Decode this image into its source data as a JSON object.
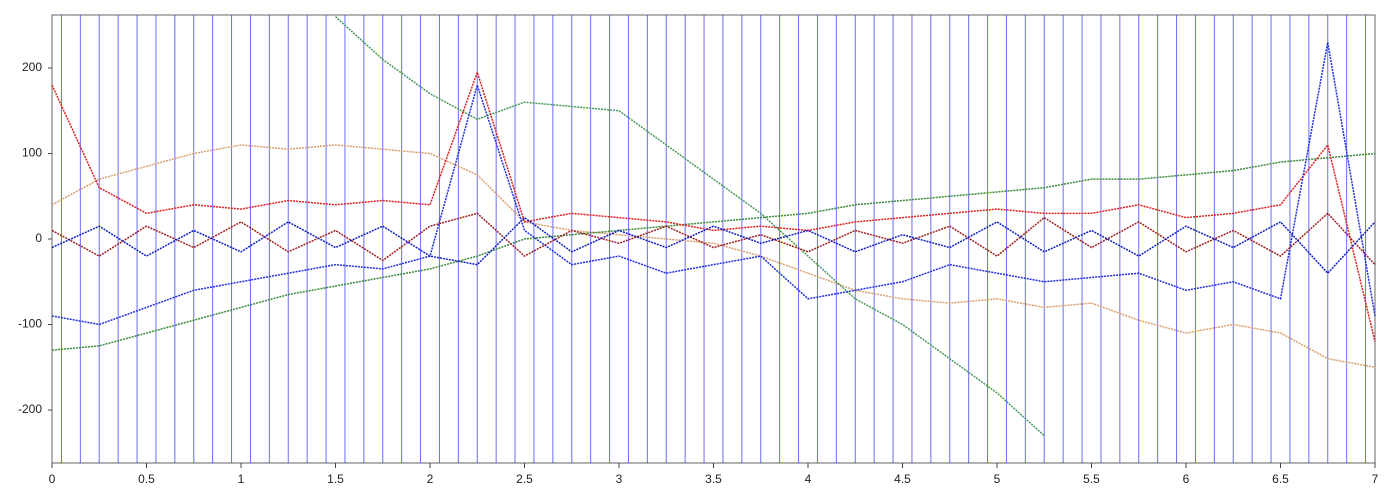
{
  "chart_data": {
    "type": "line",
    "x": [
      0,
      0.25,
      0.5,
      0.75,
      1,
      1.25,
      1.5,
      1.75,
      2,
      2.25,
      2.5,
      2.75,
      3,
      3.25,
      3.5,
      3.75,
      4,
      4.25,
      4.5,
      4.75,
      5,
      5.25,
      5.5,
      5.75,
      6,
      6.25,
      6.5,
      6.75,
      7
    ],
    "series": [
      {
        "color": "#d8a070",
        "values": [
          40,
          70,
          85,
          100,
          110,
          105,
          110,
          105,
          100,
          75,
          20,
          10,
          5,
          0,
          -5,
          -20,
          -40,
          -60,
          -70,
          -75,
          -70,
          -80,
          -75,
          -95,
          -110,
          -100,
          -110,
          -140,
          -150
        ]
      },
      {
        "color": "#4a9a5a",
        "values": [
          null,
          null,
          null,
          null,
          null,
          null,
          260,
          210,
          170,
          140,
          160,
          155,
          150,
          110,
          70,
          30,
          -20,
          -70,
          -100,
          -140,
          -180,
          -230,
          null,
          null,
          null,
          null,
          null,
          null,
          null
        ]
      },
      {
        "color": "#3a8a3a",
        "values": [
          -130,
          -125,
          -110,
          -95,
          -80,
          -65,
          -55,
          -45,
          -35,
          -20,
          0,
          5,
          10,
          15,
          20,
          25,
          30,
          40,
          45,
          50,
          55,
          60,
          70,
          70,
          75,
          80,
          90,
          95,
          100
        ]
      },
      {
        "color": "#e02020",
        "values": [
          180,
          60,
          30,
          40,
          35,
          45,
          40,
          45,
          40,
          195,
          20,
          30,
          25,
          20,
          10,
          15,
          10,
          20,
          25,
          30,
          35,
          30,
          30,
          40,
          25,
          30,
          40,
          110,
          -120
        ]
      },
      {
        "color": "#2030e0",
        "values": [
          -90,
          -100,
          -80,
          -60,
          -50,
          -40,
          -30,
          -35,
          -20,
          180,
          10,
          -30,
          -20,
          -40,
          -30,
          -20,
          -70,
          -60,
          -50,
          -30,
          -40,
          -50,
          -45,
          -40,
          -60,
          -50,
          -70,
          230,
          -90
        ]
      },
      {
        "color": "#a02020",
        "values": [
          10,
          -20,
          15,
          -10,
          20,
          -15,
          10,
          -25,
          15,
          30,
          -20,
          10,
          -5,
          15,
          -10,
          5,
          -15,
          10,
          -5,
          15,
          -20,
          25,
          -10,
          20,
          -15,
          10,
          -20,
          30,
          -30
        ]
      },
      {
        "color": "#1020c0",
        "values": [
          -10,
          15,
          -20,
          10,
          -15,
          20,
          -10,
          15,
          -20,
          -30,
          25,
          -15,
          10,
          -10,
          15,
          -5,
          10,
          -15,
          5,
          -10,
          20,
          -15,
          10,
          -20,
          15,
          -10,
          20,
          -40,
          20
        ]
      }
    ],
    "markers": {
      "color": "#3030f0",
      "x": [
        0.05,
        0.15,
        0.25,
        0.35,
        0.45,
        0.55,
        0.65,
        0.75,
        0.85,
        0.95,
        1.05,
        1.15,
        1.25,
        1.35,
        1.45,
        1.55,
        1.65,
        1.75,
        1.85,
        1.95,
        2.05,
        2.15,
        2.25,
        2.35,
        2.45,
        2.55,
        2.65,
        2.75,
        2.85,
        2.95,
        3.05,
        3.15,
        3.25,
        3.35,
        3.45,
        3.55,
        3.65,
        3.75,
        3.85,
        3.95,
        4.05,
        4.15,
        4.25,
        4.35,
        4.45,
        4.55,
        4.65,
        4.75,
        4.85,
        4.95,
        5.05,
        5.15,
        5.25,
        5.35,
        5.45,
        5.55,
        5.65,
        5.75,
        5.85,
        5.95,
        6.05,
        6.15,
        6.25,
        6.35,
        6.45,
        6.55,
        6.65,
        6.75,
        6.85,
        6.95
      ]
    },
    "xlim": [
      0,
      7
    ],
    "xticks": [
      0,
      0.5,
      1,
      1.5,
      2,
      2.5,
      3,
      3.5,
      4,
      4.5,
      5,
      5.5,
      6,
      6.5,
      7
    ],
    "ylim": [
      -262,
      262
    ],
    "yticks": [
      -200,
      -100,
      0,
      100,
      200
    ]
  }
}
